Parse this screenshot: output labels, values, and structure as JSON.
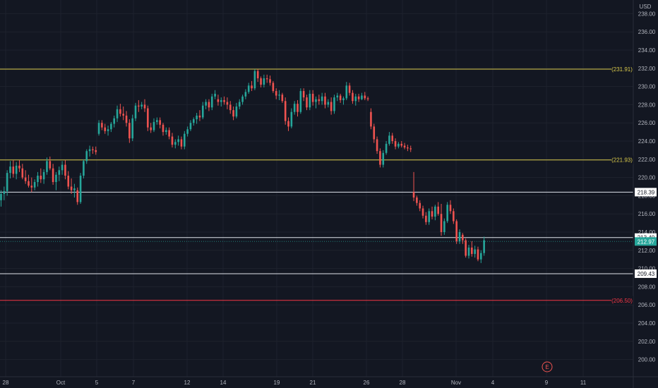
{
  "currency_label": "USD",
  "colors": {
    "background": "#131722",
    "grid": "#1e222d",
    "axis_text": "#b2b5be",
    "up": "#26a69a",
    "down": "#ef5350",
    "yellow_line": "#d9c94a",
    "white_line": "#e0e3eb",
    "red_line": "#f23645",
    "current_price": "#26a69a"
  },
  "chart_data": {
    "type": "candlestick",
    "title": "",
    "ylim": [
      199,
      239
    ],
    "y_ticks": [
      "200.00",
      "202.00",
      "204.00",
      "206.00",
      "208.00",
      "210.00",
      "212.00",
      "214.00",
      "216.00",
      "218.00",
      "220.00",
      "222.00",
      "224.00",
      "226.00",
      "228.00",
      "230.00",
      "232.00",
      "234.00",
      "236.00",
      "238.00"
    ],
    "x_ticks": [
      "28",
      "Oct",
      "5",
      "7",
      "12",
      "14",
      "19",
      "21",
      "26",
      "28",
      "Nov",
      "4",
      "9",
      "11"
    ],
    "horizontal_levels": [
      {
        "value": 231.91,
        "label": "(231.91)",
        "style": "yellow"
      },
      {
        "value": 221.93,
        "label": "(221.93)",
        "style": "yellow"
      },
      {
        "value": 218.39,
        "label": "218.39",
        "style": "white"
      },
      {
        "value": 213.4,
        "label": "213.40",
        "style": "white"
      },
      {
        "value": 209.43,
        "label": "209.43",
        "style": "white"
      },
      {
        "value": 206.5,
        "label": "(206.50)",
        "style": "red"
      }
    ],
    "current_price": {
      "value": 212.97,
      "label": "212.97"
    },
    "event_marker": "E",
    "candles": [
      [
        217.5,
        218.6,
        216.8,
        218.2
      ],
      [
        218.2,
        219.0,
        217.5,
        218.5
      ],
      [
        218.5,
        220.8,
        218.0,
        220.5
      ],
      [
        220.5,
        221.8,
        219.9,
        221.2
      ],
      [
        221.2,
        221.9,
        220.0,
        220.4
      ],
      [
        220.4,
        221.7,
        219.8,
        221.3
      ],
      [
        221.3,
        221.9,
        220.6,
        221.0
      ],
      [
        221.0,
        221.5,
        219.8,
        220.0
      ],
      [
        220.0,
        220.8,
        219.3,
        219.6
      ],
      [
        219.6,
        220.3,
        218.9,
        219.1
      ],
      [
        219.1,
        220.0,
        218.4,
        218.9
      ],
      [
        218.9,
        219.8,
        218.6,
        219.5
      ],
      [
        219.5,
        220.6,
        219.0,
        220.2
      ],
      [
        220.2,
        221.0,
        219.4,
        219.8
      ],
      [
        219.8,
        220.9,
        219.3,
        220.6
      ],
      [
        220.6,
        222.2,
        220.3,
        221.8
      ],
      [
        221.8,
        222.3,
        220.8,
        221.0
      ],
      [
        221.0,
        221.5,
        219.2,
        219.5
      ],
      [
        219.5,
        220.6,
        218.6,
        220.3
      ],
      [
        220.3,
        221.2,
        219.6,
        220.8
      ],
      [
        220.8,
        221.8,
        220.3,
        221.4
      ],
      [
        221.4,
        221.9,
        219.8,
        220.2
      ],
      [
        220.2,
        220.7,
        218.7,
        219.0
      ],
      [
        219.0,
        219.9,
        218.2,
        218.6
      ],
      [
        218.6,
        219.3,
        217.8,
        218.8
      ],
      [
        218.6,
        218.9,
        217.0,
        217.3
      ],
      [
        217.3,
        220.5,
        217.1,
        220.2
      ],
      [
        220.2,
        222.0,
        219.9,
        221.8
      ],
      [
        221.8,
        223.1,
        221.5,
        222.9
      ],
      [
        222.9,
        223.5,
        222.3,
        223.1
      ],
      [
        223.1,
        223.4,
        222.6,
        223.0
      ],
      [
        223.0,
        223.4,
        222.5,
        222.8
      ],
      [
        224.8,
        226.3,
        224.6,
        226.0
      ],
      [
        226.0,
        226.3,
        225.2,
        225.5
      ],
      [
        225.5,
        225.9,
        224.8,
        225.1
      ],
      [
        225.1,
        225.7,
        224.6,
        225.3
      ],
      [
        225.3,
        226.1,
        225.0,
        225.9
      ],
      [
        225.9,
        226.8,
        225.5,
        226.5
      ],
      [
        226.5,
        227.9,
        226.1,
        227.5
      ],
      [
        227.5,
        228.1,
        226.7,
        227.0
      ],
      [
        227.0,
        227.8,
        226.3,
        226.8
      ],
      [
        226.8,
        227.3,
        225.6,
        226.0
      ],
      [
        226.0,
        226.4,
        223.8,
        224.3
      ],
      [
        224.3,
        226.9,
        224.0,
        226.5
      ],
      [
        226.5,
        228.2,
        226.2,
        227.9
      ],
      [
        227.9,
        228.5,
        227.2,
        227.8
      ],
      [
        227.8,
        228.3,
        227.5,
        228.0
      ],
      [
        228.0,
        228.6,
        227.2,
        227.6
      ],
      [
        227.6,
        227.9,
        225.1,
        225.5
      ],
      [
        225.5,
        226.0,
        224.9,
        225.2
      ],
      [
        225.2,
        226.5,
        225.0,
        226.1
      ],
      [
        226.1,
        226.6,
        225.8,
        226.3
      ],
      [
        226.3,
        226.6,
        225.4,
        225.8
      ],
      [
        225.8,
        226.0,
        224.6,
        225.0
      ],
      [
        225.0,
        225.5,
        224.7,
        225.2
      ],
      [
        225.2,
        225.5,
        224.2,
        224.5
      ],
      [
        224.5,
        224.9,
        223.3,
        223.6
      ],
      [
        223.6,
        224.2,
        223.2,
        223.9
      ],
      [
        223.9,
        224.6,
        223.5,
        224.2
      ],
      [
        224.2,
        224.5,
        223.1,
        223.4
      ],
      [
        223.4,
        225.1,
        223.1,
        224.8
      ],
      [
        224.8,
        225.6,
        224.5,
        225.3
      ],
      [
        225.3,
        226.3,
        225.1,
        226.0
      ],
      [
        226.0,
        226.6,
        225.7,
        226.4
      ],
      [
        226.4,
        227.1,
        225.9,
        226.8
      ],
      [
        226.8,
        227.4,
        226.2,
        226.6
      ],
      [
        226.6,
        228.3,
        226.4,
        227.9
      ],
      [
        227.9,
        228.6,
        227.5,
        228.3
      ],
      [
        228.3,
        228.6,
        227.3,
        227.7
      ],
      [
        227.7,
        229.2,
        227.4,
        228.9
      ],
      [
        228.9,
        229.6,
        228.6,
        229.2
      ],
      [
        228.6,
        229.1,
        227.9,
        228.3
      ],
      [
        228.3,
        228.8,
        227.8,
        228.5
      ],
      [
        228.5,
        228.9,
        228.0,
        228.3
      ],
      [
        228.3,
        228.8,
        227.5,
        228.0
      ],
      [
        228.0,
        228.4,
        227.0,
        227.4
      ],
      [
        227.4,
        227.8,
        226.3,
        226.7
      ],
      [
        226.7,
        228.2,
        226.5,
        227.8
      ],
      [
        227.8,
        228.6,
        227.5,
        228.3
      ],
      [
        228.3,
        229.1,
        228.0,
        228.9
      ],
      [
        228.9,
        229.7,
        228.6,
        229.4
      ],
      [
        229.4,
        230.4,
        229.2,
        230.1
      ],
      [
        230.1,
        230.6,
        229.5,
        229.8
      ],
      [
        229.8,
        231.9,
        229.6,
        231.7
      ],
      [
        231.7,
        231.9,
        230.5,
        230.9
      ],
      [
        230.9,
        231.1,
        229.9,
        230.2
      ],
      [
        230.2,
        231.3,
        229.9,
        230.9
      ],
      [
        230.9,
        231.3,
        230.4,
        230.8
      ],
      [
        230.8,
        231.2,
        230.1,
        230.4
      ],
      [
        230.4,
        230.6,
        229.3,
        229.5
      ],
      [
        229.5,
        229.8,
        228.6,
        229.0
      ],
      [
        229.0,
        229.6,
        228.5,
        229.1
      ],
      [
        229.1,
        229.3,
        228.2,
        228.4
      ],
      [
        228.4,
        228.8,
        225.8,
        226.2
      ],
      [
        226.2,
        226.6,
        225.1,
        225.6
      ],
      [
        225.6,
        227.6,
        225.4,
        227.2
      ],
      [
        227.2,
        228.4,
        226.9,
        228.1
      ],
      [
        228.1,
        228.5,
        226.7,
        227.2
      ],
      [
        227.2,
        229.8,
        227.0,
        229.5
      ],
      [
        229.5,
        229.8,
        228.4,
        228.8
      ],
      [
        228.8,
        229.1,
        227.4,
        227.7
      ],
      [
        227.7,
        229.6,
        227.4,
        229.2
      ],
      [
        229.2,
        229.6,
        227.9,
        228.3
      ],
      [
        228.3,
        228.9,
        227.6,
        228.6
      ],
      [
        228.6,
        229.1,
        228.0,
        228.4
      ],
      [
        228.4,
        229.3,
        228.0,
        228.9
      ],
      [
        228.9,
        229.3,
        227.6,
        228.0
      ],
      [
        228.0,
        228.6,
        227.7,
        228.3
      ],
      [
        228.3,
        228.8,
        226.9,
        227.3
      ],
      [
        227.3,
        229.1,
        227.0,
        228.8
      ],
      [
        228.8,
        229.3,
        228.4,
        229.0
      ],
      [
        229.0,
        229.2,
        228.2,
        228.5
      ],
      [
        228.5,
        228.9,
        228.0,
        228.7
      ],
      [
        228.7,
        230.5,
        228.5,
        230.1
      ],
      [
        230.1,
        230.4,
        229.0,
        229.3
      ],
      [
        229.3,
        229.6,
        228.1,
        228.4
      ],
      [
        228.4,
        229.2,
        227.9,
        228.9
      ],
      [
        228.9,
        229.2,
        228.3,
        228.6
      ],
      [
        228.6,
        229.3,
        228.5,
        229.0
      ],
      [
        229.0,
        229.4,
        228.5,
        228.7
      ],
      [
        228.7,
        228.9,
        228.4,
        228.6
      ],
      [
        227.2,
        227.6,
        225.3,
        225.6
      ],
      [
        225.6,
        225.9,
        223.8,
        224.2
      ],
      [
        224.2,
        224.5,
        222.6,
        222.9
      ],
      [
        222.9,
        223.2,
        221.1,
        221.4
      ],
      [
        221.4,
        223.0,
        221.1,
        222.7
      ],
      [
        222.7,
        224.0,
        222.5,
        223.7
      ],
      [
        223.7,
        225.0,
        223.5,
        224.6
      ],
      [
        224.6,
        224.9,
        223.7,
        224.0
      ],
      [
        224.0,
        224.3,
        223.1,
        223.4
      ],
      [
        223.4,
        223.9,
        223.2,
        223.7
      ],
      [
        223.7,
        224.0,
        223.3,
        223.5
      ],
      [
        223.5,
        223.8,
        223.1,
        223.3
      ],
      [
        223.3,
        223.6,
        222.9,
        223.2
      ],
      [
        223.2,
        223.5,
        222.8,
        223.1
      ],
      [
        218.4,
        220.6,
        217.4,
        217.8
      ],
      [
        217.8,
        218.0,
        216.9,
        217.2
      ],
      [
        217.2,
        217.5,
        216.3,
        216.6
      ],
      [
        216.6,
        216.9,
        215.5,
        215.8
      ],
      [
        215.8,
        216.2,
        214.8,
        215.1
      ],
      [
        215.1,
        216.6,
        214.8,
        216.3
      ],
      [
        216.3,
        216.8,
        215.4,
        215.7
      ],
      [
        215.7,
        217.0,
        215.3,
        216.8
      ],
      [
        216.8,
        217.3,
        215.8,
        216.0
      ],
      [
        216.0,
        217.1,
        213.6,
        214.0
      ],
      [
        214.0,
        215.5,
        213.7,
        215.2
      ],
      [
        215.2,
        217.3,
        215.0,
        217.0
      ],
      [
        217.0,
        217.5,
        216.0,
        216.3
      ],
      [
        216.3,
        216.6,
        214.9,
        215.2
      ],
      [
        215.2,
        215.4,
        212.7,
        213.0
      ],
      [
        213.0,
        214.3,
        212.7,
        214.0
      ],
      [
        213.7,
        213.9,
        212.7,
        213.1
      ],
      [
        213.1,
        213.3,
        211.2,
        211.4
      ],
      [
        211.4,
        212.6,
        211.1,
        212.3
      ],
      [
        212.3,
        213.0,
        211.3,
        211.6
      ],
      [
        211.6,
        212.5,
        211.2,
        212.1
      ],
      [
        212.1,
        212.4,
        210.8,
        211.0
      ],
      [
        211.0,
        212.0,
        210.6,
        211.7
      ],
      [
        211.7,
        213.5,
        211.4,
        213.1
      ]
    ]
  }
}
